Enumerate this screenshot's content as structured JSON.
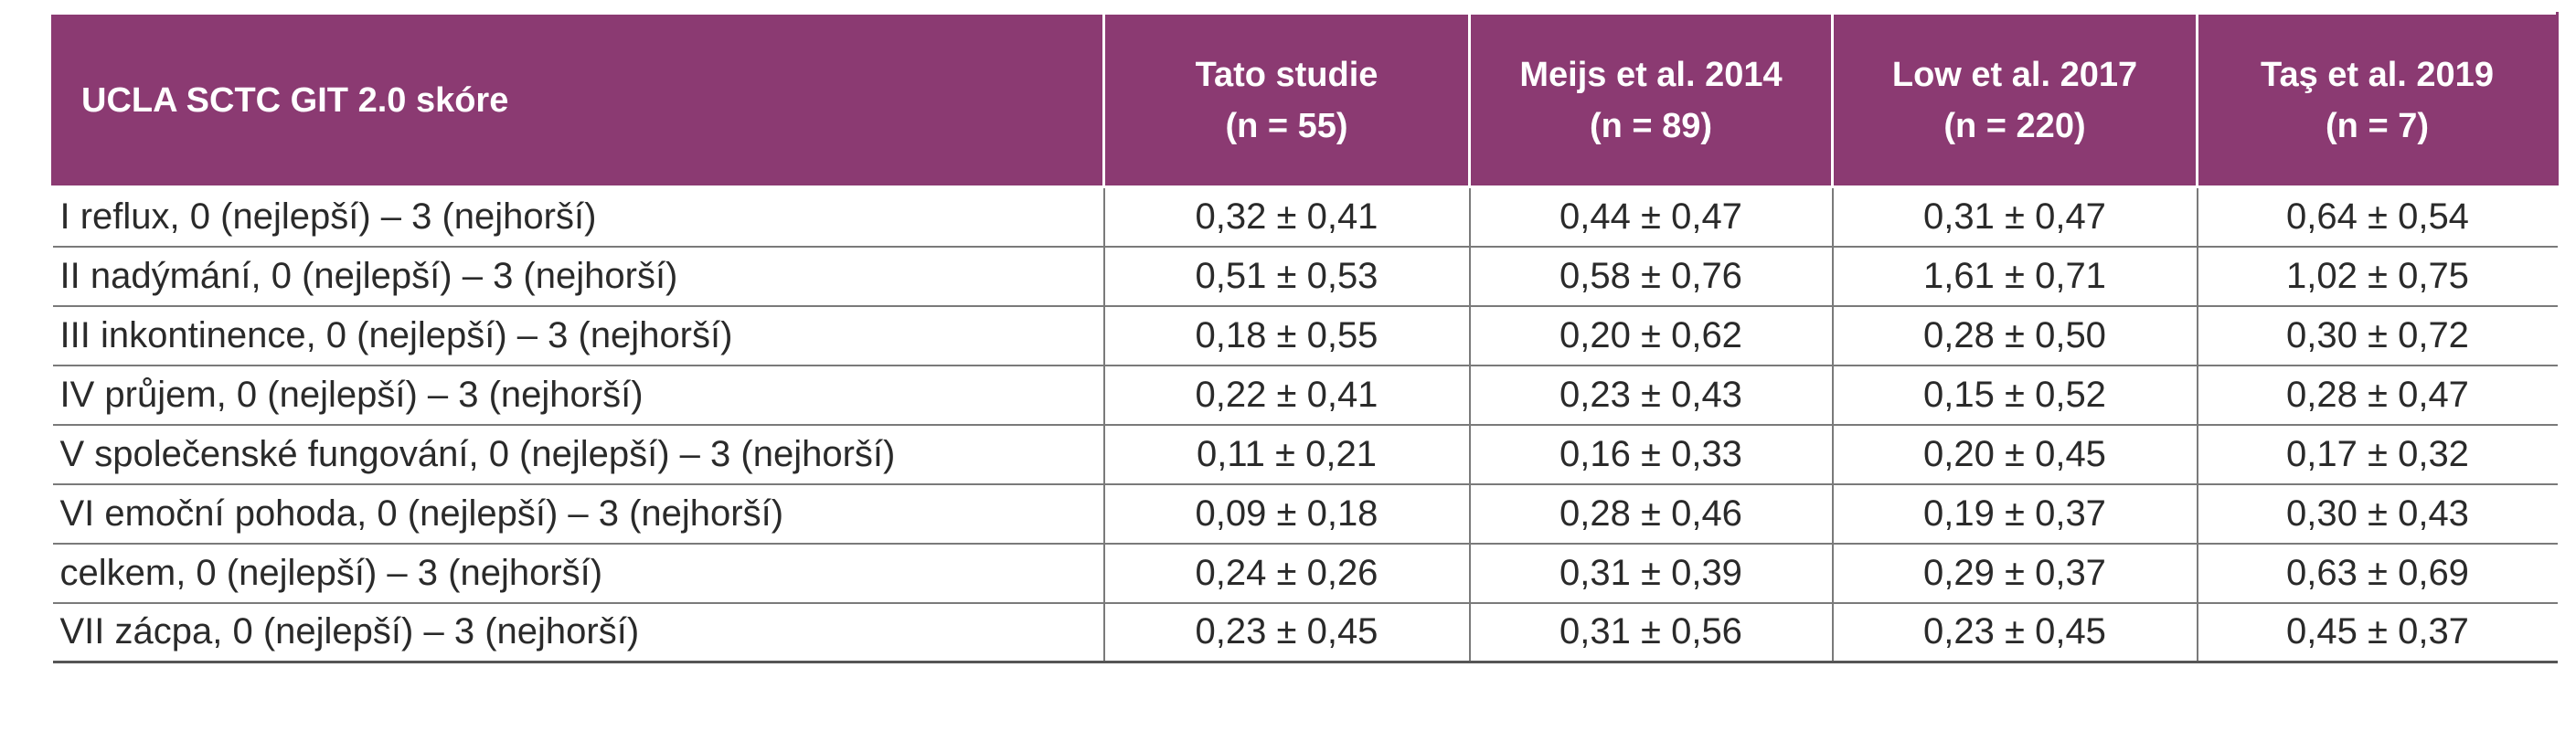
{
  "table": {
    "colors": {
      "header_bg": "#8b3a72",
      "header_text": "#ffffff",
      "cell_text": "#2a2a2a",
      "grid": "#7a7a7a"
    },
    "header": [
      {
        "line1": "UCLA SCTC GIT 2.0 skóre",
        "line2": ""
      },
      {
        "line1": "Tato studie",
        "line2": "(n = 55)"
      },
      {
        "line1": "Meijs et al. 2014",
        "line2": "(n = 89)"
      },
      {
        "line1": "Low et al. 2017",
        "line2": "(n = 220)"
      },
      {
        "line1": "Taş et al. 2019",
        "line2": "(n = 7)"
      }
    ],
    "rows": [
      [
        "I reflux, 0 (nejlepší) – 3 (nejhorší)",
        "0,32 ± 0,41",
        "0,44 ± 0,47",
        "0,31 ± 0,47",
        "0,64 ± 0,54"
      ],
      [
        "II nadýmání, 0 (nejlepší) – 3 (nejhorší)",
        "0,51 ± 0,53",
        "0,58 ± 0,76",
        "1,61 ± 0,71",
        "1,02 ± 0,75"
      ],
      [
        "III inkontinence, 0 (nejlepší) – 3 (nejhorší)",
        "0,18 ± 0,55",
        "0,20 ± 0,62",
        "0,28 ± 0,50",
        "0,30 ± 0,72"
      ],
      [
        "IV průjem, 0 (nejlepší) – 3 (nejhorší)",
        "0,22 ± 0,41",
        "0,23 ± 0,43",
        "0,15 ± 0,52",
        "0,28 ± 0,47"
      ],
      [
        "V společenské fungování, 0 (nejlepší) – 3 (nejhorší)",
        "0,11 ± 0,21",
        "0,16 ± 0,33",
        "0,20 ± 0,45",
        "0,17 ± 0,32"
      ],
      [
        "VI emoční pohoda, 0 (nejlepší) – 3 (nejhorší)",
        "0,09 ± 0,18",
        "0,28 ± 0,46",
        "0,19 ± 0,37",
        "0,30 ± 0,43"
      ],
      [
        "celkem, 0 (nejlepší) – 3 (nejhorší)",
        "0,24 ± 0,26",
        "0,31 ± 0,39",
        "0,29 ± 0,37",
        "0,63 ± 0,69"
      ],
      [
        "VII zácpa, 0 (nejlepší) – 3 (nejhorší)",
        "0,23 ± 0,45",
        "0,31 ± 0,56",
        "0,23 ± 0,45",
        "0,45 ± 0,37"
      ]
    ]
  }
}
